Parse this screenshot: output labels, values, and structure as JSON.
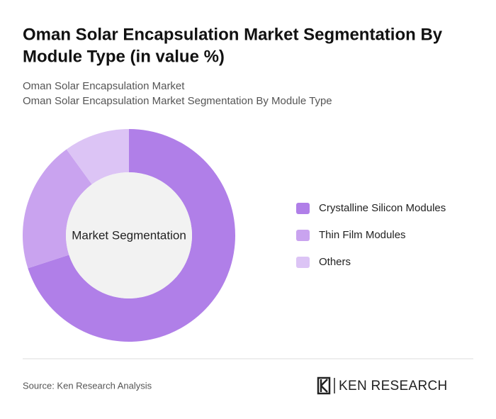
{
  "chart_data": {
    "type": "donut",
    "title": [
      "Oman Solar Encapsulation Market Segmentation By",
      "Module Type (in value %)"
    ],
    "subtitle": [
      "Oman Solar Encapsulation Market",
      "Oman Solar Encapsulation Market Segmentation By Module Type"
    ],
    "center_label": "Market Segmentation",
    "categories": [
      "Crystalline Silicon Modules",
      "Thin Film Modules",
      "Others"
    ],
    "values": [
      70,
      20,
      10
    ],
    "colors": [
      "#b07fe8",
      "#c9a3ef",
      "#dcc4f5"
    ],
    "source": "Source: Ken Research Analysis",
    "brand": "KEN RESEARCH"
  }
}
